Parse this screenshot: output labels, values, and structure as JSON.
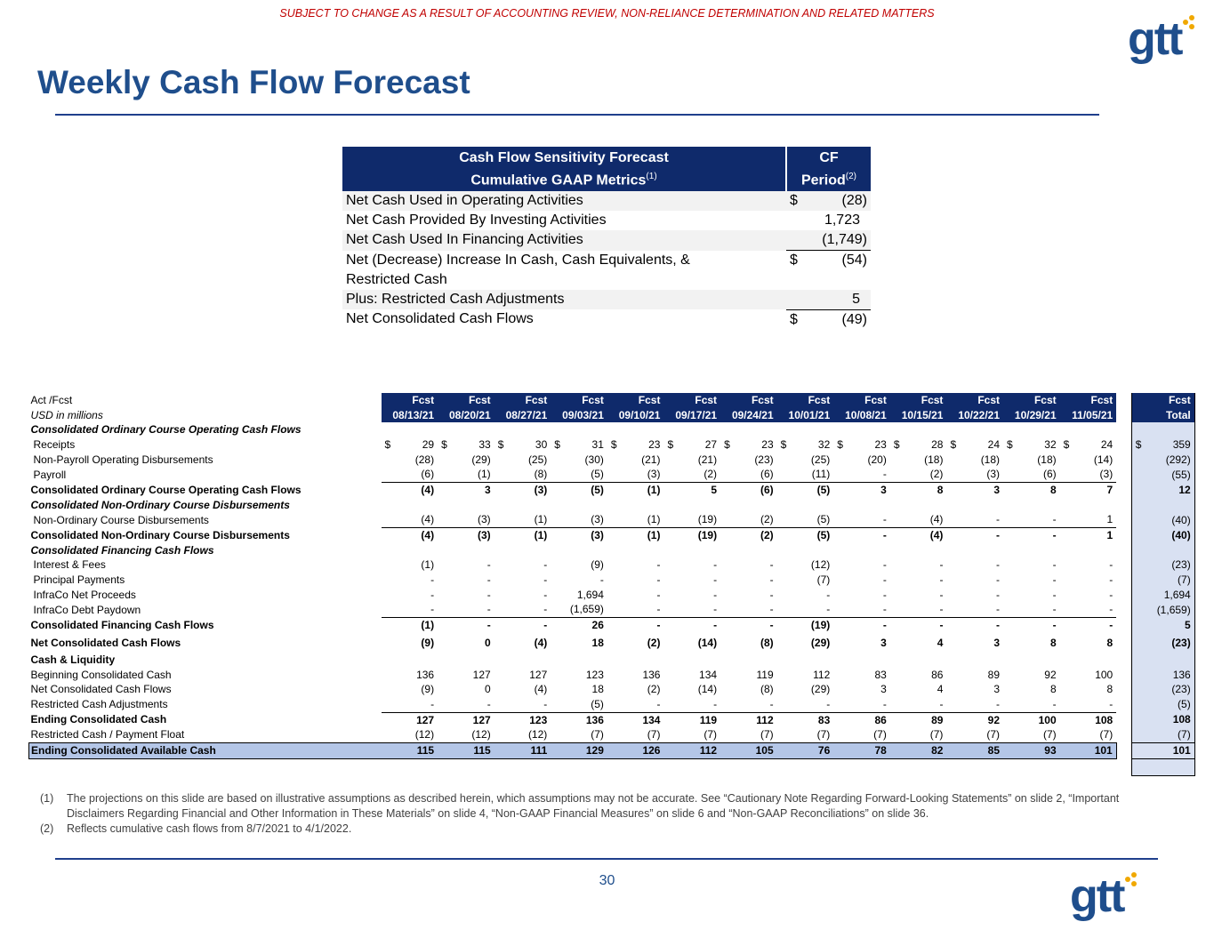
{
  "header": {
    "disclaimer": "SUBJECT TO CHANGE AS A RESULT OF ACCOUNTING REVIEW, NON-RELIANCE DETERMINATION AND RELATED MATTERS",
    "logo_text": "gtt",
    "title": "Weekly Cash Flow Forecast",
    "brand_color": "#1f4e8c",
    "accent_color": "#f0a800"
  },
  "sensitivity": {
    "heading_line1": "Cash Flow Sensitivity Forecast",
    "heading_line2": "Cumulative GAAP Metrics",
    "heading_note": "(1)",
    "col_line1": "CF",
    "col_line2": "Period",
    "col_note": "(2)",
    "rows": [
      {
        "label": "Net Cash Used in Operating Activities",
        "dollar": "$",
        "value": "(28)"
      },
      {
        "label": "Net Cash Provided By Investing Activities",
        "dollar": "",
        "value": "1,723"
      },
      {
        "label": "Net Cash Used In Financing Activities",
        "dollar": "",
        "value": "(1,749)"
      },
      {
        "label": "Net (Decrease) Increase In Cash, Cash Equivalents, & Restricted Cash",
        "dollar": "$",
        "value": "(54)"
      },
      {
        "label": "Plus: Restricted Cash Adjustments",
        "dollar": "",
        "value": "5"
      },
      {
        "label": "Net Consolidated Cash Flows",
        "dollar": "$",
        "value": "(49)"
      }
    ]
  },
  "forecast": {
    "label_actfcst": "Act /Fcst",
    "label_units": "USD in millions",
    "col_types": [
      "Fcst",
      "Fcst",
      "Fcst",
      "Fcst",
      "Fcst",
      "Fcst",
      "Fcst",
      "Fcst",
      "Fcst",
      "Fcst",
      "Fcst",
      "Fcst",
      "Fcst"
    ],
    "col_dates": [
      "08/13/21",
      "08/20/21",
      "08/27/21",
      "09/03/21",
      "09/10/21",
      "09/17/21",
      "09/24/21",
      "10/01/21",
      "10/08/21",
      "10/15/21",
      "10/22/21",
      "10/29/21",
      "11/05/21"
    ],
    "total_type": "Fcst",
    "total_label": "Total",
    "dollar_sign": "$",
    "sections": {
      "op": "Consolidated Ordinary Course Operating Cash Flows",
      "nonord": "Consolidated Non-Ordinary Course Disbursements",
      "fin": "Consolidated Financing Cash Flows",
      "liq": "Cash & Liquidity"
    },
    "rows": {
      "receipts": {
        "label": "Receipts",
        "values": [
          "29",
          "33",
          "30",
          "31",
          "23",
          "27",
          "23",
          "32",
          "23",
          "28",
          "24",
          "32",
          "24"
        ],
        "total": "359"
      },
      "nonpayroll": {
        "label": "Non-Payroll Operating Disbursements",
        "values": [
          "(28)",
          "(29)",
          "(25)",
          "(30)",
          "(21)",
          "(21)",
          "(23)",
          "(25)",
          "(20)",
          "(18)",
          "(18)",
          "(18)",
          "(14)"
        ],
        "total": "(292)"
      },
      "payroll": {
        "label": "Payroll",
        "values": [
          "(6)",
          "(1)",
          "(8)",
          "(5)",
          "(3)",
          "(2)",
          "(6)",
          "(11)",
          "-",
          "(2)",
          "(3)",
          "(6)",
          "(3)"
        ],
        "total": "(55)"
      },
      "op_total": {
        "label": "Consolidated Ordinary Course Operating Cash Flows",
        "values": [
          "(4)",
          "3",
          "(3)",
          "(5)",
          "(1)",
          "5",
          "(6)",
          "(5)",
          "3",
          "8",
          "3",
          "8",
          "7"
        ],
        "total": "12"
      },
      "nonord_disb": {
        "label": "Non-Ordinary Course Disbursements",
        "values": [
          "(4)",
          "(3)",
          "(1)",
          "(3)",
          "(1)",
          "(19)",
          "(2)",
          "(5)",
          "-",
          "(4)",
          "-",
          "-",
          "1"
        ],
        "total": "(40)"
      },
      "nonord_total": {
        "label": "Consolidated Non-Ordinary Course Disbursements",
        "values": [
          "(4)",
          "(3)",
          "(1)",
          "(3)",
          "(1)",
          "(19)",
          "(2)",
          "(5)",
          "-",
          "(4)",
          "-",
          "-",
          "1"
        ],
        "total": "(40)"
      },
      "interest": {
        "label": "Interest & Fees",
        "values": [
          "(1)",
          "-",
          "-",
          "(9)",
          "-",
          "-",
          "-",
          "(12)",
          "-",
          "-",
          "-",
          "-",
          "-"
        ],
        "total": "(23)"
      },
      "principal": {
        "label": "Principal Payments",
        "values": [
          "-",
          "-",
          "-",
          "-",
          "-",
          "-",
          "-",
          "(7)",
          "-",
          "-",
          "-",
          "-",
          "-"
        ],
        "total": "(7)"
      },
      "infraco_proceeds": {
        "label": "InfraCo Net Proceeds",
        "values": [
          "-",
          "-",
          "-",
          "1,694",
          "-",
          "-",
          "-",
          "-",
          "-",
          "-",
          "-",
          "-",
          "-"
        ],
        "total": "1,694"
      },
      "infraco_paydown": {
        "label": "InfraCo Debt Paydown",
        "values": [
          "-",
          "-",
          "-",
          "(1,659)",
          "-",
          "-",
          "-",
          "-",
          "-",
          "-",
          "-",
          "-",
          "-"
        ],
        "total": "(1,659)"
      },
      "fin_total": {
        "label": "Consolidated Financing Cash Flows",
        "values": [
          "(1)",
          "-",
          "-",
          "26",
          "-",
          "-",
          "-",
          "(19)",
          "-",
          "-",
          "-",
          "-",
          "-"
        ],
        "total": "5"
      },
      "net_flows": {
        "label": "Net Consolidated Cash Flows",
        "values": [
          "(9)",
          "0",
          "(4)",
          "18",
          "(2)",
          "(14)",
          "(8)",
          "(29)",
          "3",
          "4",
          "3",
          "8",
          "8"
        ],
        "total": "(23)"
      },
      "beginning": {
        "label": "Beginning Consolidated Cash",
        "values": [
          "136",
          "127",
          "127",
          "123",
          "136",
          "134",
          "119",
          "112",
          "83",
          "86",
          "89",
          "92",
          "100"
        ],
        "total": "136"
      },
      "net_flows2": {
        "label": "Net Consolidated Cash Flows",
        "values": [
          "(9)",
          "0",
          "(4)",
          "18",
          "(2)",
          "(14)",
          "(8)",
          "(29)",
          "3",
          "4",
          "3",
          "8",
          "8"
        ],
        "total": "(23)"
      },
      "restricted_adj": {
        "label": "Restricted Cash Adjustments",
        "values": [
          "-",
          "-",
          "-",
          "(5)",
          "-",
          "-",
          "-",
          "-",
          "-",
          "-",
          "-",
          "-",
          "-"
        ],
        "total": "(5)"
      },
      "ending": {
        "label": "Ending Consolidated Cash",
        "values": [
          "127",
          "127",
          "123",
          "136",
          "134",
          "119",
          "112",
          "83",
          "86",
          "89",
          "92",
          "100",
          "108"
        ],
        "total": "108"
      },
      "restricted_float": {
        "label": "Restricted Cash / Payment Float",
        "values": [
          "(12)",
          "(12)",
          "(12)",
          "(7)",
          "(7)",
          "(7)",
          "(7)",
          "(7)",
          "(7)",
          "(7)",
          "(7)",
          "(7)",
          "(7)"
        ],
        "total": "(7)"
      },
      "ending_available": {
        "label": "Ending Consolidated Available Cash",
        "values": [
          "115",
          "115",
          "111",
          "129",
          "126",
          "112",
          "105",
          "76",
          "78",
          "82",
          "85",
          "93",
          "101"
        ],
        "total": "101"
      }
    }
  },
  "footnotes": [
    {
      "num": "(1)",
      "text": "The projections on this slide are based on illustrative assumptions as described herein, which assumptions may not be accurate. See “Cautionary Note Regarding Forward-Looking Statements” on slide 2, “Important Disclaimers Regarding Financial and Other Information in These Materials” on slide 4, “Non-GAAP Financial Measures” on slide 6 and “Non-GAAP Reconciliations” on slide 36."
    },
    {
      "num": "(2)",
      "text": "Reflects cumulative cash flows from 8/7/2021 to 4/1/2022."
    }
  ],
  "page_number": "30"
}
